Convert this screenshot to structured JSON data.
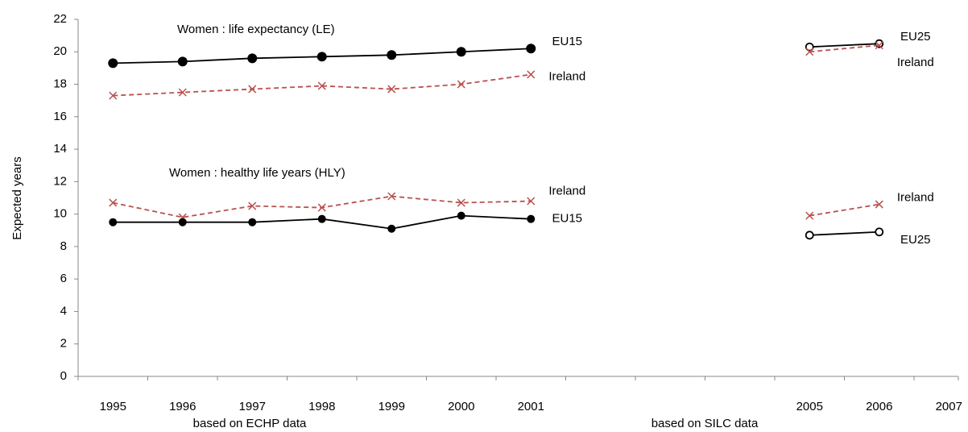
{
  "chart_data": {
    "type": "line",
    "y_label": "Expected years",
    "annotations": [
      "Women : life expectancy (LE)",
      "Women :  healthy life years (HLY)",
      "based on ECHP data",
      "based on SILC data"
    ],
    "categories": [
      "1995",
      "1996",
      "1997",
      "1998",
      "1999",
      "2000",
      "2001",
      null,
      null,
      null,
      "2005",
      "2006",
      "2007"
    ],
    "series": [
      {
        "name": "EU15",
        "color": "#000000",
        "marker": "filled-circle",
        "dashed": false,
        "values": [
          19.3,
          19.4,
          19.6,
          19.7,
          19.8,
          20.0,
          20.2,
          null,
          null,
          null,
          null,
          null,
          null
        ]
      },
      {
        "name": "Ireland",
        "color": "#b9514e",
        "marker": "cross",
        "dashed": true,
        "values": [
          17.3,
          17.5,
          17.7,
          17.9,
          17.7,
          18.0,
          18.6,
          null,
          null,
          null,
          null,
          null,
          null
        ]
      },
      {
        "name": "EU25",
        "color": "#000000",
        "marker": "open-circle",
        "dashed": false,
        "values": [
          null,
          null,
          null,
          null,
          null,
          null,
          null,
          null,
          null,
          null,
          20.3,
          20.5,
          null
        ]
      },
      {
        "name": "Ireland",
        "color": "#b9514e",
        "marker": "cross",
        "dashed": true,
        "values": [
          null,
          null,
          null,
          null,
          null,
          null,
          null,
          null,
          null,
          null,
          20.0,
          20.4,
          null
        ]
      },
      {
        "name": "Ireland",
        "color": "#b9514e",
        "marker": "cross",
        "dashed": true,
        "values": [
          10.7,
          9.8,
          10.5,
          10.4,
          11.1,
          10.7,
          10.8,
          null,
          null,
          null,
          null,
          null,
          null
        ]
      },
      {
        "name": "EU15",
        "color": "#000000",
        "marker": "filled-circle-small",
        "dashed": false,
        "values": [
          9.5,
          9.5,
          9.5,
          9.7,
          9.1,
          9.9,
          9.7,
          null,
          null,
          null,
          null,
          null,
          null
        ]
      },
      {
        "name": "Ireland",
        "color": "#b9514e",
        "marker": "cross",
        "dashed": true,
        "values": [
          null,
          null,
          null,
          null,
          null,
          null,
          null,
          null,
          null,
          null,
          9.9,
          10.6,
          null
        ]
      },
      {
        "name": "EU25",
        "color": "#000000",
        "marker": "open-circle",
        "dashed": false,
        "values": [
          null,
          null,
          null,
          null,
          null,
          null,
          null,
          null,
          null,
          null,
          8.7,
          8.9,
          null
        ]
      }
    ],
    "ylim": [
      0,
      22
    ],
    "yticks": [
      0,
      2,
      4,
      6,
      8,
      10,
      12,
      14,
      16,
      18,
      20,
      22
    ],
    "grid": false
  }
}
